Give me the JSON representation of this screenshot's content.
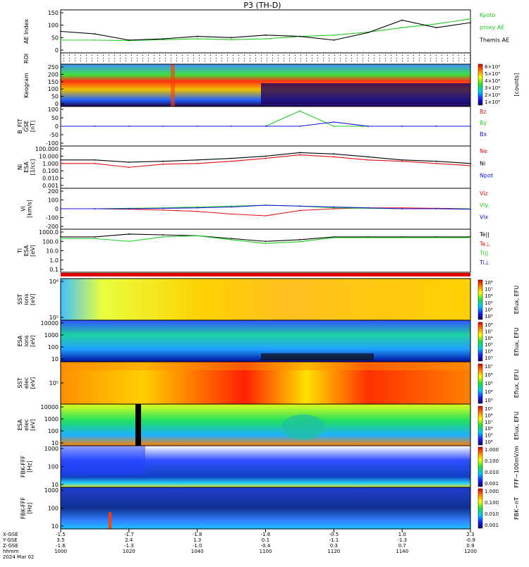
{
  "title": "P3 (TH-D)",
  "colors": {
    "ae_kyoto": "#22cc22",
    "ae_themis": "#000000",
    "red": "#e01010",
    "green": "#22cc22",
    "blue": "#1010e0",
    "black": "#000000"
  },
  "panels": [
    {
      "id": "ae",
      "ylabel": [
        "AE Index"
      ],
      "ticks": [
        "150",
        "100",
        "50",
        "0"
      ],
      "right": [
        {
          "t": "Kyoto",
          "c": "green"
        },
        {
          "t": "proxy AE",
          "c": "green"
        },
        {
          "t": "Themis AE",
          "c": "black"
        }
      ]
    },
    {
      "id": "roi",
      "ylabel": [
        "ROI"
      ],
      "ticks": [],
      "right": []
    },
    {
      "id": "keogram",
      "ylabel": [
        "Keogram"
      ],
      "ticks": [
        "250",
        "200",
        "150",
        "100",
        "50",
        "0"
      ],
      "right": []
    },
    {
      "id": "bfit",
      "ylabel": [
        "B_FIT",
        "GSE",
        "[nT]"
      ],
      "ticks": [
        "100",
        "50",
        "0",
        "-50",
        "-100"
      ],
      "right": [
        {
          "t": "Bz",
          "c": "red"
        },
        {
          "t": "By",
          "c": "green"
        },
        {
          "t": "Bx",
          "c": "blue"
        }
      ]
    },
    {
      "id": "ni",
      "ylabel": [
        "Ni",
        "ESA",
        "[1/cc]"
      ],
      "ticks": [
        "100.000",
        "10.000",
        "1.000",
        "0.100",
        "0.010",
        "0.001"
      ],
      "right": [
        {
          "t": "Ne",
          "c": "red"
        },
        {
          "t": "Ni",
          "c": "black"
        },
        {
          "t": "Npot",
          "c": "blue"
        }
      ]
    },
    {
      "id": "vi",
      "ylabel": [
        "Vi",
        "[km/s]"
      ],
      "ticks": [
        "200",
        "100",
        "0",
        "-100",
        "-200"
      ],
      "right": [
        {
          "t": "Viz",
          "c": "red"
        },
        {
          "t": "Viy",
          "c": "green"
        },
        {
          "t": "Vix",
          "c": "blue"
        }
      ]
    },
    {
      "id": "ti",
      "ylabel": [
        "Ti",
        "ESA",
        "[eV]"
      ],
      "ticks": [
        "1000.0",
        "100.0",
        "10.0",
        "1.0",
        "0.1"
      ],
      "right": [
        {
          "t": "Te||",
          "c": "black"
        },
        {
          "t": "Te⊥",
          "c": "red"
        },
        {
          "t": "Ti||",
          "c": "green"
        },
        {
          "t": "Ti⊥",
          "c": "blue"
        }
      ]
    },
    {
      "id": "sst_e",
      "ylabel": [
        "SST",
        "ions",
        "[eV]"
      ],
      "ticks": [
        "10⁶",
        "10⁵"
      ],
      "right": []
    },
    {
      "id": "esa_i",
      "ylabel": [
        "ESA",
        "ions",
        "[eV]"
      ],
      "ticks": [
        "10000",
        "1000",
        "100",
        "10"
      ],
      "right": []
    },
    {
      "id": "sst_i",
      "ylabel": [
        "SST",
        "elec",
        "[eV]"
      ],
      "ticks": [
        "10⁵"
      ],
      "right": []
    },
    {
      "id": "esa_e",
      "ylabel": [
        "ESA",
        "elec",
        "[eV]"
      ],
      "ticks": [
        "10000",
        "1000",
        "100",
        "10"
      ],
      "right": []
    },
    {
      "id": "fbk1",
      "ylabel": [
        "FBK-FFF",
        "[Hz]"
      ],
      "ticks": [
        "1000",
        "100",
        "10"
      ],
      "right": []
    },
    {
      "id": "fbk2",
      "ylabel": [
        "FBK-FFF",
        "[Hz]"
      ],
      "ticks": [
        "1000",
        "100",
        "10"
      ],
      "right": []
    }
  ],
  "colorbars": [
    {
      "id": "keogram",
      "labels": [
        "6×10⁴",
        "5×10⁴",
        "4×10⁴",
        "3×10⁴",
        "2×10⁴",
        "1×10⁴"
      ],
      "unit": "[counts]"
    },
    {
      "id": "sst_e",
      "labels": [
        "10⁸",
        "10⁷",
        "10⁶",
        "10⁵",
        "10⁴",
        "10³"
      ],
      "unit": "Eflux, EFU"
    },
    {
      "id": "esa_i",
      "labels": [
        "10⁸",
        "10⁷",
        "10⁶",
        "10⁵",
        "10⁴",
        "10³"
      ],
      "unit": "Eflux, EFU"
    },
    {
      "id": "sst_i",
      "labels": [
        "10⁷",
        "10⁶",
        "10⁵",
        "10⁴",
        "10³"
      ],
      "unit": "Eflux, EFU"
    },
    {
      "id": "esa_e",
      "labels": [
        "10⁹",
        "10⁸",
        "10⁷",
        "10⁶",
        "10⁵",
        "10⁴"
      ],
      "unit": "Eflux, EFU"
    },
    {
      "id": "fbk1",
      "labels": [
        "1.000",
        "0.100",
        "0.010",
        "0.001"
      ],
      "unit": "FFF~100mV/m"
    },
    {
      "id": "fbk2",
      "labels": [
        "1.000",
        "0.100",
        "0.010",
        "0.001"
      ],
      "unit": "FBK~nT"
    }
  ],
  "bottom_axis": {
    "rows": [
      {
        "label": "X-GSE",
        "values": [
          "-1.5",
          "-1.7",
          "-1.8",
          "-1.6",
          "-0.5",
          "1.0",
          "2.3"
        ]
      },
      {
        "label": "Y-GSE",
        "values": [
          "3.5",
          "2.4",
          "1.3",
          "0.1",
          "-1.1",
          "-1.3",
          "-0.9"
        ]
      },
      {
        "label": "Z-GSE",
        "values": [
          "-1.6",
          "-1.3",
          "-1.0",
          "-0.4",
          "0.3",
          "0.7",
          "0.9"
        ]
      },
      {
        "label": "hhmm",
        "values": [
          "1000",
          "1020",
          "1040",
          "1100",
          "1120",
          "1140",
          "1200"
        ]
      }
    ],
    "date": "2024 Mar 02"
  },
  "chart_data": [
    {
      "type": "line",
      "title": "P3 (TH-D)",
      "ylabel": "AE Index",
      "ylim": [
        0,
        150
      ],
      "x": [
        "1000",
        "1010",
        "1020",
        "1030",
        "1040",
        "1050",
        "1100",
        "1110",
        "1120",
        "1130",
        "1140",
        "1150",
        "1200"
      ],
      "series": [
        {
          "name": "Kyoto proxy AE",
          "values": [
            40,
            40,
            38,
            42,
            45,
            42,
            45,
            55,
            60,
            72,
            90,
            105,
            125
          ]
        },
        {
          "name": "Themis AE",
          "values": [
            75,
            65,
            40,
            45,
            55,
            50,
            60,
            55,
            40,
            70,
            120,
            90,
            110
          ]
        }
      ]
    },
    {
      "type": "line",
      "ylabel": "B_FIT GSE [nT]",
      "ylim": [
        -100,
        100
      ],
      "series": [
        {
          "name": "By",
          "values": [
            0,
            0,
            0,
            0,
            0,
            0,
            0,
            90,
            0,
            0,
            0,
            0,
            0
          ]
        },
        {
          "name": "Bx",
          "values": [
            0,
            0,
            0,
            0,
            0,
            0,
            0,
            0,
            25,
            0,
            0,
            0,
            0
          ]
        }
      ]
    },
    {
      "type": "line",
      "ylabel": "Ni ESA [1/cc]",
      "ylim": [
        0.001,
        100
      ],
      "series": [
        {
          "name": "Ni",
          "values": [
            3,
            3,
            1.5,
            2,
            3,
            5,
            10,
            30,
            20,
            8,
            3,
            2,
            1
          ]
        },
        {
          "name": "Ne",
          "values": [
            1,
            1,
            0.3,
            0.8,
            1,
            2,
            5,
            15,
            8,
            3,
            2,
            1,
            0.5
          ]
        }
      ]
    },
    {
      "type": "line",
      "ylabel": "Vi [km/s]",
      "ylim": [
        -200,
        200
      ],
      "series": [
        {
          "name": "Viz",
          "values": [
            0,
            0,
            -5,
            -15,
            -30,
            -60,
            -80,
            -20,
            0,
            10,
            10,
            5,
            0
          ]
        },
        {
          "name": "Viy",
          "values": [
            0,
            0,
            5,
            10,
            20,
            30,
            40,
            30,
            10,
            5,
            0,
            0,
            0
          ]
        },
        {
          "name": "Vix",
          "values": [
            0,
            0,
            0,
            5,
            10,
            20,
            40,
            30,
            20,
            10,
            0,
            0,
            -5
          ]
        }
      ]
    },
    {
      "type": "line",
      "ylabel": "Ti ESA [eV]",
      "ylim": [
        0.1,
        1000
      ],
      "series": [
        {
          "name": "Te||",
          "values": [
            300,
            300,
            600,
            500,
            400,
            200,
            100,
            150,
            300,
            300,
            300,
            300,
            300
          ]
        },
        {
          "name": "Ti||",
          "values": [
            200,
            200,
            100,
            300,
            400,
            150,
            60,
            90,
            250,
            250,
            250,
            250,
            250
          ]
        }
      ]
    },
    {
      "type": "heatmap",
      "ylabel": "Keogram",
      "ylim": [
        0,
        250
      ]
    },
    {
      "type": "heatmap",
      "ylabel": "SST ions [eV]"
    },
    {
      "type": "heatmap",
      "ylabel": "ESA ions [eV]",
      "ylim": [
        10,
        10000
      ]
    },
    {
      "type": "heatmap",
      "ylabel": "SST elec [eV]"
    },
    {
      "type": "heatmap",
      "ylabel": "ESA elec [eV]",
      "ylim": [
        10,
        10000
      ]
    },
    {
      "type": "heatmap",
      "ylabel": "FBK-FFF [Hz]",
      "ylim": [
        10,
        1000
      ]
    },
    {
      "type": "heatmap",
      "ylabel": "FBK-FFF [Hz]",
      "ylim": [
        10,
        1000
      ]
    }
  ]
}
